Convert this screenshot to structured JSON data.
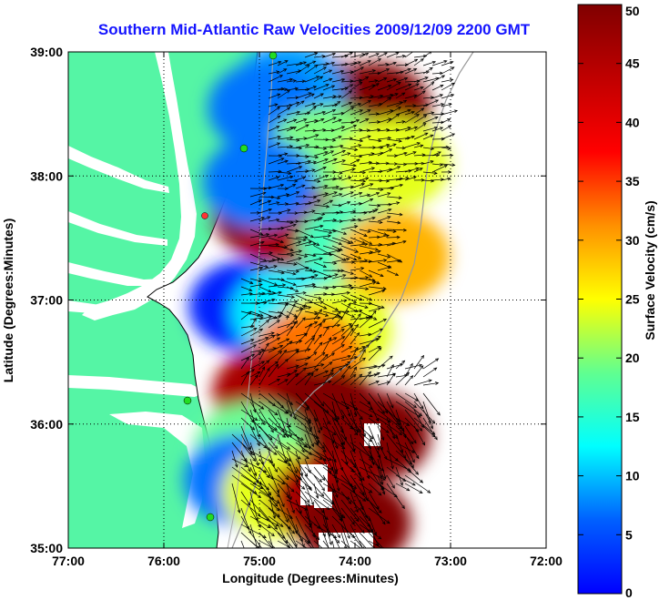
{
  "chart_data": {
    "type": "heatmap",
    "title": "Southern Mid-Atlantic Raw Velocities 2009/12/09 2200 GMT",
    "xlabel": "Longitude (Degrees:Minutes)",
    "ylabel": "Latitude (Degrees:Minutes)",
    "colorbar_label": "Surface Velocity (cm/s)",
    "x_ticks": [
      "77:00",
      "76:00",
      "75:00",
      "74:00",
      "73:00",
      "72:00"
    ],
    "y_ticks": [
      "39:00",
      "38:00",
      "37:00",
      "36:00",
      "35:00"
    ],
    "colorbar_ticks": [
      "50",
      "45",
      "40",
      "35",
      "30",
      "25",
      "20",
      "15",
      "10",
      "5",
      "0"
    ],
    "xlim": [
      -77,
      -72
    ],
    "ylim": [
      35,
      39
    ],
    "clim": [
      0,
      50
    ],
    "grid": true,
    "colormap": "jet",
    "land_color": "#55f5a5",
    "vector_color": "#000000",
    "station_color": "#22dd22",
    "velocity_regions": [
      {
        "lon": -74.4,
        "lat": 38.6,
        "speed": 48
      },
      {
        "lon": -73.8,
        "lat": 38.55,
        "speed": 50
      },
      {
        "lon": -74.7,
        "lat": 38.7,
        "speed": 14
      },
      {
        "lon": -74.95,
        "lat": 38.55,
        "speed": 12
      },
      {
        "lon": -74.3,
        "lat": 38.2,
        "speed": 25
      },
      {
        "lon": -73.6,
        "lat": 38.1,
        "speed": 30
      },
      {
        "lon": -74.9,
        "lat": 37.7,
        "speed": 50
      },
      {
        "lon": -74.6,
        "lat": 37.55,
        "speed": 48
      },
      {
        "lon": -75.0,
        "lat": 37.95,
        "speed": 12
      },
      {
        "lon": -74.0,
        "lat": 37.45,
        "speed": 22
      },
      {
        "lon": -73.6,
        "lat": 37.35,
        "speed": 35
      },
      {
        "lon": -75.15,
        "lat": 36.95,
        "speed": 8
      },
      {
        "lon": -74.7,
        "lat": 36.9,
        "speed": 18
      },
      {
        "lon": -74.2,
        "lat": 36.75,
        "speed": 30
      },
      {
        "lon": -74.5,
        "lat": 36.55,
        "speed": 38
      },
      {
        "lon": -74.9,
        "lat": 36.25,
        "speed": 48
      },
      {
        "lon": -74.3,
        "lat": 36.1,
        "speed": 50
      },
      {
        "lon": -73.8,
        "lat": 35.9,
        "speed": 50
      },
      {
        "lon": -75.1,
        "lat": 35.8,
        "speed": 24
      },
      {
        "lon": -75.2,
        "lat": 35.55,
        "speed": 12
      },
      {
        "lon": -74.8,
        "lat": 35.45,
        "speed": 30
      },
      {
        "lon": -74.3,
        "lat": 35.4,
        "speed": 48
      },
      {
        "lon": -74.0,
        "lat": 35.2,
        "speed": 50
      }
    ]
  }
}
